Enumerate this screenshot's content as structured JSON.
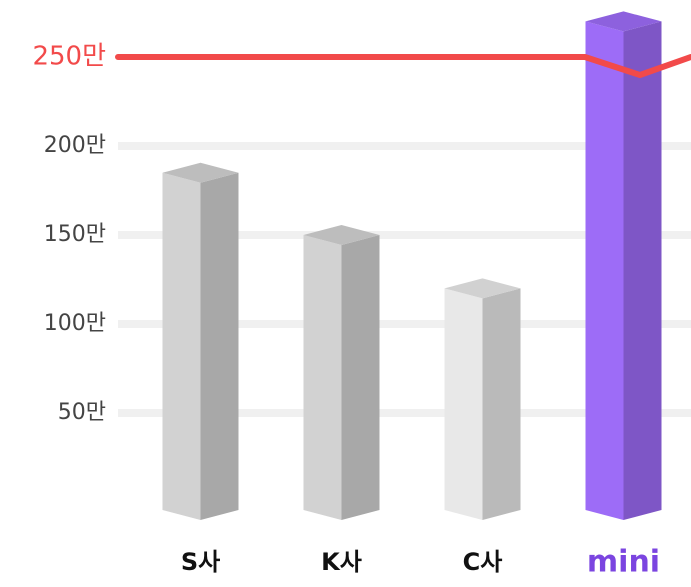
{
  "chart_data": {
    "type": "bar3d",
    "categories": [
      "S사",
      "K사",
      "C사",
      "mini"
    ],
    "values": [
      185,
      150,
      120,
      270
    ],
    "colors": [
      "#d2d2d2",
      "#d2d2d2",
      "#e8e8e8",
      "#9d6cf7"
    ],
    "label_colors": [
      "#111111",
      "#111111",
      "#111111",
      "#7b45e0"
    ],
    "ylim": [
      0,
      250
    ],
    "yticks": [
      {
        "value": 50,
        "label": "50만"
      },
      {
        "value": 100,
        "label": "100만"
      },
      {
        "value": 150,
        "label": "150만"
      },
      {
        "value": 200,
        "label": "200만"
      },
      {
        "value": 250,
        "label": "250만"
      }
    ],
    "grid": true,
    "highlight_color": "#f24a4a"
  }
}
